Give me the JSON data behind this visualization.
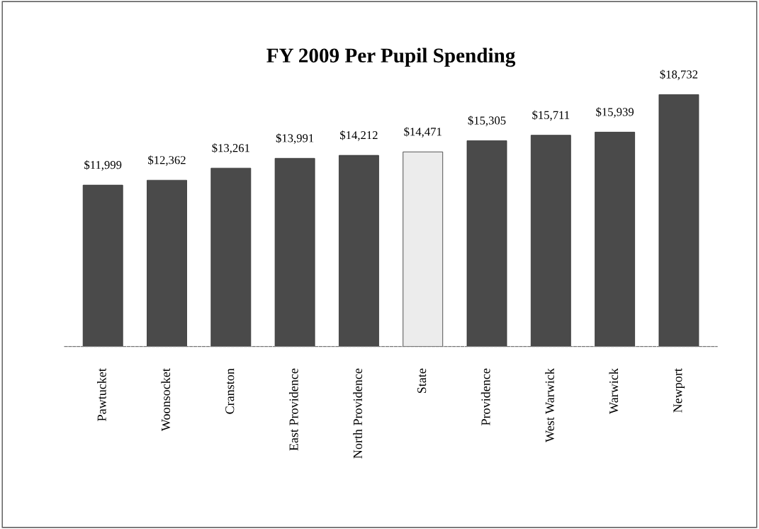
{
  "chart_data": {
    "type": "bar",
    "title": "FY 2009 Per Pupil Spending",
    "categories": [
      "Pawtucket",
      "Woonsocket",
      "Cranston",
      "East Providence",
      "North Providence",
      "State",
      "Providence",
      "West Warwick",
      "Warwick",
      "Newport"
    ],
    "values": [
      11999,
      12362,
      13261,
      13991,
      14212,
      14471,
      15305,
      15711,
      15939,
      18732
    ],
    "colors": [
      "#4a4a4a",
      "#4a4a4a",
      "#4a4a4a",
      "#4a4a4a",
      "#4a4a4a",
      "#ececec",
      "#4a4a4a",
      "#4a4a4a",
      "#4a4a4a",
      "#4a4a4a"
    ],
    "value_labels": [
      "$11,999",
      "$12,362",
      "$13,261",
      "$13,991",
      "$14,212",
      "$14,471",
      "$15,305",
      "$15,711",
      "$15,939",
      "$18,732"
    ],
    "tick_labels": "x",
    "grid": false,
    "legend": false
  }
}
